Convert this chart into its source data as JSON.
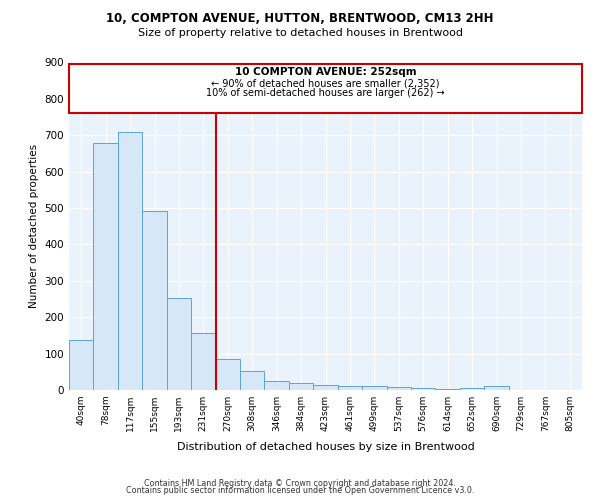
{
  "title1": "10, COMPTON AVENUE, HUTTON, BRENTWOOD, CM13 2HH",
  "title2": "Size of property relative to detached houses in Brentwood",
  "xlabel": "Distribution of detached houses by size in Brentwood",
  "ylabel": "Number of detached properties",
  "bin_labels": [
    "40sqm",
    "78sqm",
    "117sqm",
    "155sqm",
    "193sqm",
    "231sqm",
    "270sqm",
    "308sqm",
    "346sqm",
    "384sqm",
    "423sqm",
    "461sqm",
    "499sqm",
    "537sqm",
    "576sqm",
    "614sqm",
    "652sqm",
    "690sqm",
    "729sqm",
    "767sqm",
    "805sqm"
  ],
  "bar_heights": [
    137,
    678,
    710,
    492,
    252,
    157,
    85,
    52,
    26,
    20,
    15,
    11,
    11,
    8,
    5,
    4,
    5,
    10,
    0,
    0,
    0
  ],
  "bar_color": "#d6e8f7",
  "bar_edge_color": "#5ba3d9",
  "annotation_line1": "10 COMPTON AVENUE: 252sqm",
  "annotation_line2": "← 90% of detached houses are smaller (2,352)",
  "annotation_line3": "10% of semi-detached houses are larger (262) →",
  "vline_color": "#cc0000",
  "ylim": [
    0,
    900
  ],
  "yticks": [
    0,
    100,
    200,
    300,
    400,
    500,
    600,
    700,
    800,
    900
  ],
  "footer1": "Contains HM Land Registry data © Crown copyright and database right 2024.",
  "footer2": "Contains public sector information licensed under the Open Government Licence v3.0.",
  "bg_color": "#eaf3fb",
  "annotation_box_color": "#ffffff",
  "annotation_box_edge": "#cc0000"
}
